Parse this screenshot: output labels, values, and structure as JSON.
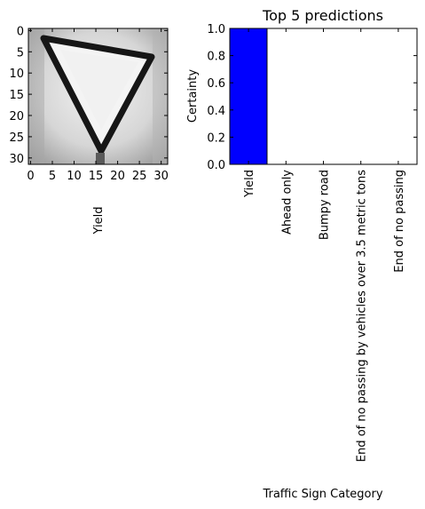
{
  "image_panel": {
    "xlabel": "Yield",
    "x_ticks": [
      0,
      5,
      10,
      15,
      20,
      25,
      30
    ],
    "y_ticks": [
      0,
      5,
      10,
      15,
      20,
      25,
      30
    ],
    "xlim": [
      -0.5,
      31.5
    ],
    "ylim": [
      31.5,
      -0.5
    ],
    "content": "yield-sign-grayscale-icon"
  },
  "chart_data": {
    "type": "bar",
    "title": "Top 5 predictions",
    "xlabel": "Traffic Sign Category",
    "ylabel": "Certainty",
    "categories": [
      "Yield",
      "Ahead only",
      "Bumpy road",
      "End of no passing by vehicles over 3.5 metric tons",
      "End of no passing"
    ],
    "values": [
      1.0,
      0.0,
      0.0,
      0.0,
      0.0
    ],
    "ylim": [
      0.0,
      1.0
    ],
    "y_ticks": [
      "0.0",
      "0.2",
      "0.4",
      "0.6",
      "0.8",
      "1.0"
    ],
    "bar_color": "#0000ff",
    "grid": false
  }
}
